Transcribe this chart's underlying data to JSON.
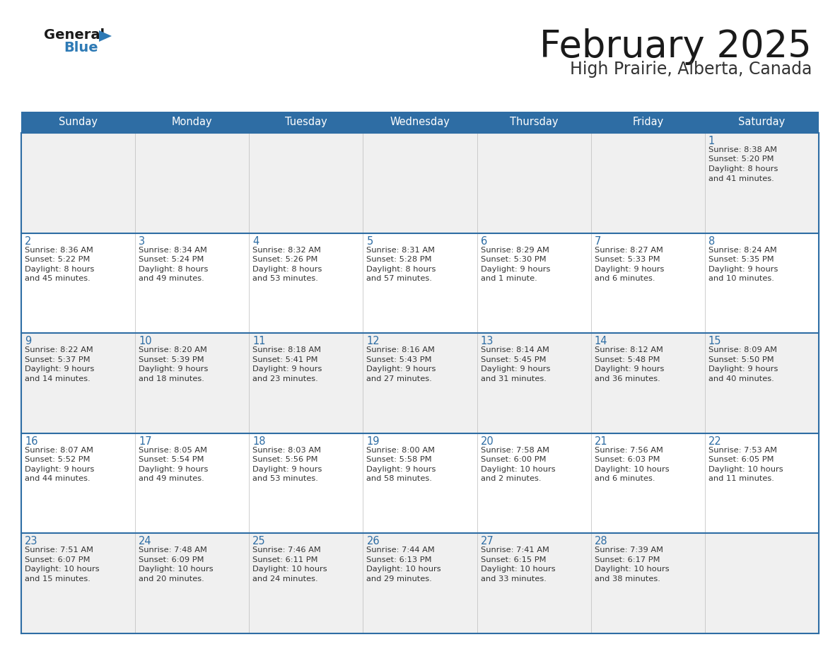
{
  "title": "February 2025",
  "subtitle": "High Prairie, Alberta, Canada",
  "header_bg": "#2E6DA4",
  "header_text_color": "#FFFFFF",
  "cell_bg_light": "#F0F0F0",
  "cell_bg_white": "#FFFFFF",
  "day_number_color": "#2E6DA4",
  "info_text_color": "#333333",
  "border_color": "#2E6DA4",
  "grid_color": "#BBBBBB",
  "days_of_week": [
    "Sunday",
    "Monday",
    "Tuesday",
    "Wednesday",
    "Thursday",
    "Friday",
    "Saturday"
  ],
  "calendar_data": [
    [
      {
        "day": "",
        "sunrise": "",
        "sunset": "",
        "daylight": ""
      },
      {
        "day": "",
        "sunrise": "",
        "sunset": "",
        "daylight": ""
      },
      {
        "day": "",
        "sunrise": "",
        "sunset": "",
        "daylight": ""
      },
      {
        "day": "",
        "sunrise": "",
        "sunset": "",
        "daylight": ""
      },
      {
        "day": "",
        "sunrise": "",
        "sunset": "",
        "daylight": ""
      },
      {
        "day": "",
        "sunrise": "",
        "sunset": "",
        "daylight": ""
      },
      {
        "day": "1",
        "sunrise": "Sunrise: 8:38 AM",
        "sunset": "Sunset: 5:20 PM",
        "daylight": "Daylight: 8 hours\nand 41 minutes."
      }
    ],
    [
      {
        "day": "2",
        "sunrise": "Sunrise: 8:36 AM",
        "sunset": "Sunset: 5:22 PM",
        "daylight": "Daylight: 8 hours\nand 45 minutes."
      },
      {
        "day": "3",
        "sunrise": "Sunrise: 8:34 AM",
        "sunset": "Sunset: 5:24 PM",
        "daylight": "Daylight: 8 hours\nand 49 minutes."
      },
      {
        "day": "4",
        "sunrise": "Sunrise: 8:32 AM",
        "sunset": "Sunset: 5:26 PM",
        "daylight": "Daylight: 8 hours\nand 53 minutes."
      },
      {
        "day": "5",
        "sunrise": "Sunrise: 8:31 AM",
        "sunset": "Sunset: 5:28 PM",
        "daylight": "Daylight: 8 hours\nand 57 minutes."
      },
      {
        "day": "6",
        "sunrise": "Sunrise: 8:29 AM",
        "sunset": "Sunset: 5:30 PM",
        "daylight": "Daylight: 9 hours\nand 1 minute."
      },
      {
        "day": "7",
        "sunrise": "Sunrise: 8:27 AM",
        "sunset": "Sunset: 5:33 PM",
        "daylight": "Daylight: 9 hours\nand 6 minutes."
      },
      {
        "day": "8",
        "sunrise": "Sunrise: 8:24 AM",
        "sunset": "Sunset: 5:35 PM",
        "daylight": "Daylight: 9 hours\nand 10 minutes."
      }
    ],
    [
      {
        "day": "9",
        "sunrise": "Sunrise: 8:22 AM",
        "sunset": "Sunset: 5:37 PM",
        "daylight": "Daylight: 9 hours\nand 14 minutes."
      },
      {
        "day": "10",
        "sunrise": "Sunrise: 8:20 AM",
        "sunset": "Sunset: 5:39 PM",
        "daylight": "Daylight: 9 hours\nand 18 minutes."
      },
      {
        "day": "11",
        "sunrise": "Sunrise: 8:18 AM",
        "sunset": "Sunset: 5:41 PM",
        "daylight": "Daylight: 9 hours\nand 23 minutes."
      },
      {
        "day": "12",
        "sunrise": "Sunrise: 8:16 AM",
        "sunset": "Sunset: 5:43 PM",
        "daylight": "Daylight: 9 hours\nand 27 minutes."
      },
      {
        "day": "13",
        "sunrise": "Sunrise: 8:14 AM",
        "sunset": "Sunset: 5:45 PM",
        "daylight": "Daylight: 9 hours\nand 31 minutes."
      },
      {
        "day": "14",
        "sunrise": "Sunrise: 8:12 AM",
        "sunset": "Sunset: 5:48 PM",
        "daylight": "Daylight: 9 hours\nand 36 minutes."
      },
      {
        "day": "15",
        "sunrise": "Sunrise: 8:09 AM",
        "sunset": "Sunset: 5:50 PM",
        "daylight": "Daylight: 9 hours\nand 40 minutes."
      }
    ],
    [
      {
        "day": "16",
        "sunrise": "Sunrise: 8:07 AM",
        "sunset": "Sunset: 5:52 PM",
        "daylight": "Daylight: 9 hours\nand 44 minutes."
      },
      {
        "day": "17",
        "sunrise": "Sunrise: 8:05 AM",
        "sunset": "Sunset: 5:54 PM",
        "daylight": "Daylight: 9 hours\nand 49 minutes."
      },
      {
        "day": "18",
        "sunrise": "Sunrise: 8:03 AM",
        "sunset": "Sunset: 5:56 PM",
        "daylight": "Daylight: 9 hours\nand 53 minutes."
      },
      {
        "day": "19",
        "sunrise": "Sunrise: 8:00 AM",
        "sunset": "Sunset: 5:58 PM",
        "daylight": "Daylight: 9 hours\nand 58 minutes."
      },
      {
        "day": "20",
        "sunrise": "Sunrise: 7:58 AM",
        "sunset": "Sunset: 6:00 PM",
        "daylight": "Daylight: 10 hours\nand 2 minutes."
      },
      {
        "day": "21",
        "sunrise": "Sunrise: 7:56 AM",
        "sunset": "Sunset: 6:03 PM",
        "daylight": "Daylight: 10 hours\nand 6 minutes."
      },
      {
        "day": "22",
        "sunrise": "Sunrise: 7:53 AM",
        "sunset": "Sunset: 6:05 PM",
        "daylight": "Daylight: 10 hours\nand 11 minutes."
      }
    ],
    [
      {
        "day": "23",
        "sunrise": "Sunrise: 7:51 AM",
        "sunset": "Sunset: 6:07 PM",
        "daylight": "Daylight: 10 hours\nand 15 minutes."
      },
      {
        "day": "24",
        "sunrise": "Sunrise: 7:48 AM",
        "sunset": "Sunset: 6:09 PM",
        "daylight": "Daylight: 10 hours\nand 20 minutes."
      },
      {
        "day": "25",
        "sunrise": "Sunrise: 7:46 AM",
        "sunset": "Sunset: 6:11 PM",
        "daylight": "Daylight: 10 hours\nand 24 minutes."
      },
      {
        "day": "26",
        "sunrise": "Sunrise: 7:44 AM",
        "sunset": "Sunset: 6:13 PM",
        "daylight": "Daylight: 10 hours\nand 29 minutes."
      },
      {
        "day": "27",
        "sunrise": "Sunrise: 7:41 AM",
        "sunset": "Sunset: 6:15 PM",
        "daylight": "Daylight: 10 hours\nand 33 minutes."
      },
      {
        "day": "28",
        "sunrise": "Sunrise: 7:39 AM",
        "sunset": "Sunset: 6:17 PM",
        "daylight": "Daylight: 10 hours\nand 38 minutes."
      },
      {
        "day": "",
        "sunrise": "",
        "sunset": "",
        "daylight": ""
      }
    ]
  ]
}
